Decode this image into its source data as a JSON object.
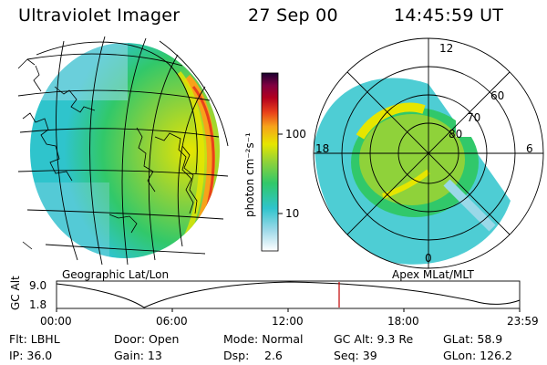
{
  "header": {
    "title": "Ultraviolet Imager",
    "date": "27 Sep 00",
    "time": "14:45:59 UT"
  },
  "left_map": {
    "label": "Geographic Lat/Lon"
  },
  "colorbar": {
    "unit": "photon cm⁻²s⁻¹",
    "ticks": [
      "100",
      "10"
    ],
    "scale": "log",
    "colors": [
      "#ffffff",
      "#9ad8e8",
      "#2fc4cc",
      "#31c86a",
      "#8fd23a",
      "#e6e600",
      "#f7a21a",
      "#e8401a",
      "#b3001e",
      "#800040",
      "#2a0040",
      "#000000"
    ]
  },
  "polar": {
    "label": "Apex MLat/MLT",
    "mlt_labels": [
      "12",
      "18",
      "6",
      "0"
    ],
    "mlat_labels": [
      "60",
      "70",
      "80"
    ]
  },
  "altitude": {
    "axis_label": "GC Alt",
    "y_ticks": [
      "9.0",
      "1.8"
    ],
    "x_ticks": [
      "00:00",
      "06:00",
      "12:00",
      "18:00",
      "23:59"
    ],
    "marker_time": "14:45:59",
    "marker_color": "#c00000"
  },
  "status": {
    "filter": "Flt: LBHL",
    "door": "Door: Open",
    "mode": "Mode: Normal",
    "gc_alt": "GC Alt: 9.3 Re",
    "glat": "GLat: 58.9",
    "ip": "IP: 36.0",
    "gain": "Gain: 13",
    "dsp_label": "Dsp:",
    "dsp_value": "2.6",
    "seq": "Seq: 39",
    "glon": "GLon: 126.2"
  }
}
